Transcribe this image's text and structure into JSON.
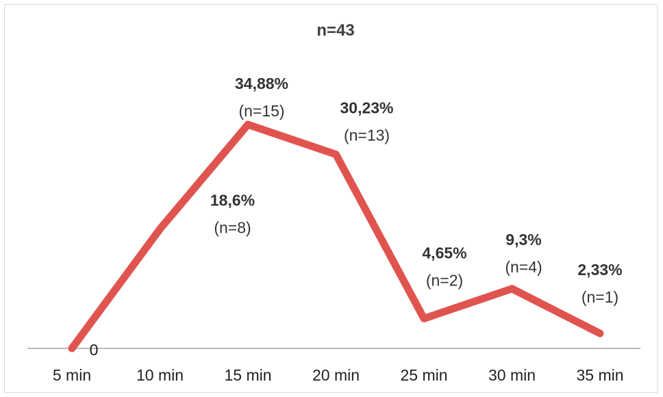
{
  "chart_data": {
    "type": "line",
    "title": "n=43",
    "categories": [
      "5 min",
      "10 min",
      "15 min",
      "20 min",
      "25 min",
      "30 min",
      "35 min"
    ],
    "series": [
      {
        "values": [
          0,
          18.6,
          34.88,
          30.23,
          4.65,
          9.3,
          2.33
        ],
        "labels": [
          "0",
          "18,6%",
          "34,88%",
          "30,23%",
          "4,65%",
          "9,3%",
          "2,33%"
        ],
        "counts": [
          "",
          "(n=8)",
          "(n=15)",
          "(n=13)",
          "(n=2)",
          "(n=4)",
          "(n=1)"
        ],
        "color": "#e05450"
      }
    ],
    "xlabel": "",
    "ylabel": "",
    "ylim": [
      0,
      40
    ],
    "grid": false,
    "legend": "none"
  }
}
